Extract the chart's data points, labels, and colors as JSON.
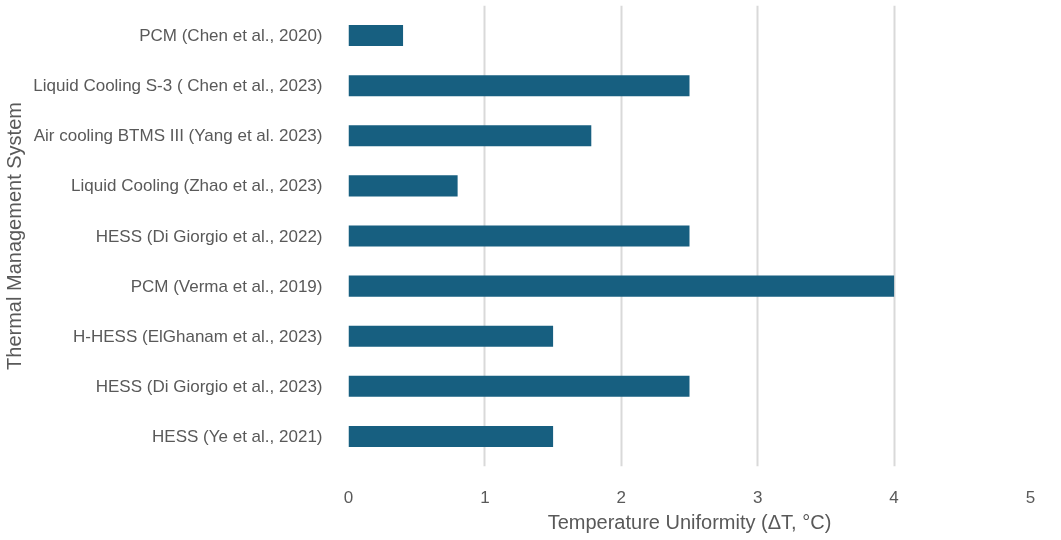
{
  "chart_data": {
    "type": "bar",
    "orientation": "horizontal",
    "xlabel": "Temperature Uniformity (ΔT, °C)",
    "ylabel": "Thermal Management System",
    "categories": [
      "PCM (Chen et al., 2020)",
      "Liquid Cooling S-3 ( Chen et al., 2023)",
      "Air cooling BTMS III (Yang et al. 2023)",
      "Liquid Cooling (Zhao et al., 2023)",
      "HESS (Di Giorgio et al., 2022)",
      "PCM (Verma et al., 2019)",
      "H-HESS (ElGhanam et al., 2023)",
      "HESS (Di Giorgio et al., 2023)",
      "HESS (Ye et al., 2021)"
    ],
    "values": [
      0.4,
      2.5,
      1.78,
      0.8,
      2.5,
      4,
      1.5,
      2.5,
      1.5
    ],
    "color": "#175f80",
    "xlim": [
      0,
      5
    ],
    "xticks": [
      0,
      1,
      2,
      3,
      4,
      5
    ],
    "grid": "x"
  }
}
